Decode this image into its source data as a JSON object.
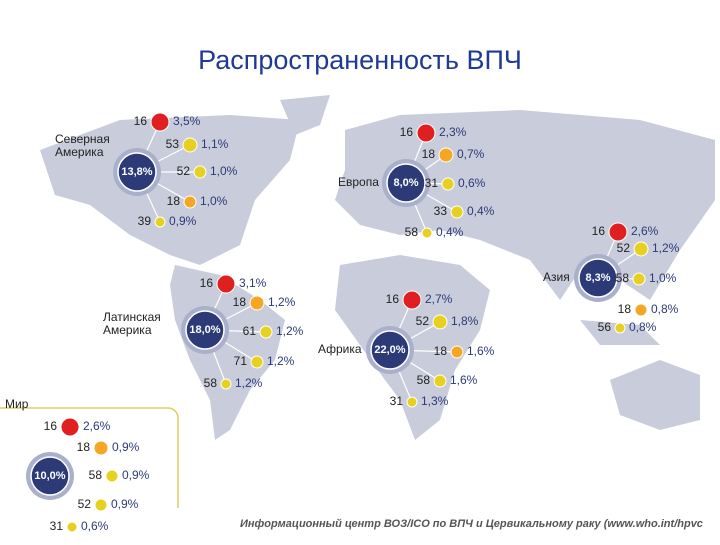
{
  "title": "Распространенность ВПЧ",
  "regions": [
    {
      "name": [
        "Северная",
        "Америка"
      ],
      "total": "13,8%",
      "types": [
        {
          "type": 16,
          "prevalence": "3,5%",
          "color": "#e02020"
        },
        {
          "type": 53,
          "prevalence": "1,1%",
          "color": "#e8d020"
        },
        {
          "type": 52,
          "prevalence": "1,0%",
          "color": "#e8d020"
        },
        {
          "type": 18,
          "prevalence": "1,0%",
          "color": "#f5a623"
        },
        {
          "type": 39,
          "prevalence": "0,9%",
          "color": "#e8d020"
        }
      ]
    },
    {
      "name": [
        "Европа"
      ],
      "total": "8,0%",
      "types": [
        {
          "type": 16,
          "prevalence": "2,3%",
          "color": "#e02020"
        },
        {
          "type": 18,
          "prevalence": "0,7%",
          "color": "#f5a623"
        },
        {
          "type": 31,
          "prevalence": "0,6%",
          "color": "#e8d020"
        },
        {
          "type": 33,
          "prevalence": "0,4%",
          "color": "#e8d020"
        },
        {
          "type": 58,
          "prevalence": "0,4%",
          "color": "#e8d020"
        }
      ]
    },
    {
      "name": [
        "Азия"
      ],
      "total": "8,3%",
      "types": [
        {
          "type": 16,
          "prevalence": "2,6%",
          "color": "#e02020"
        },
        {
          "type": 52,
          "prevalence": "1,2%",
          "color": "#e8d020"
        },
        {
          "type": 58,
          "prevalence": "1,0%",
          "color": "#e8d020"
        },
        {
          "type": 18,
          "prevalence": "0,8%",
          "color": "#f5a623"
        },
        {
          "type": 56,
          "prevalence": "0,8%",
          "color": "#e8d020"
        }
      ]
    },
    {
      "name": [
        "Латинская",
        "Америка"
      ],
      "total": "18,0%",
      "types": [
        {
          "type": 16,
          "prevalence": "3,1%",
          "color": "#e02020"
        },
        {
          "type": 18,
          "prevalence": "1,2%",
          "color": "#f5a623"
        },
        {
          "type": 61,
          "prevalence": "1,2%",
          "color": "#e8d020"
        },
        {
          "type": 71,
          "prevalence": "1,2%",
          "color": "#e8d020"
        },
        {
          "type": 58,
          "prevalence": "1,2%",
          "color": "#e8d020"
        }
      ]
    },
    {
      "name": [
        "Африка"
      ],
      "total": "22,0%",
      "types": [
        {
          "type": 16,
          "prevalence": "2,7%",
          "color": "#e02020"
        },
        {
          "type": 52,
          "prevalence": "1,8%",
          "color": "#e8d020"
        },
        {
          "type": 18,
          "prevalence": "1,6%",
          "color": "#f5a623"
        },
        {
          "type": 58,
          "prevalence": "1,6%",
          "color": "#e8d020"
        },
        {
          "type": 31,
          "prevalence": "1,3%",
          "color": "#e8d020"
        }
      ]
    },
    {
      "name": [
        "Мир"
      ],
      "total": "10,0%",
      "types": [
        {
          "type": 16,
          "prevalence": "2,6%",
          "color": "#e02020"
        },
        {
          "type": 18,
          "prevalence": "0,9%",
          "color": "#f5a623"
        },
        {
          "type": 58,
          "prevalence": "0,9%",
          "color": "#e8d020"
        },
        {
          "type": 52,
          "prevalence": "0,9%",
          "color": "#e8d020"
        },
        {
          "type": 31,
          "prevalence": "0,6%",
          "color": "#e8d020"
        }
      ]
    }
  ],
  "source": "Информационный центр ВОЗ/ICO по ВПЧ и Цервикальному раку (www.who.int/hpvc"
}
